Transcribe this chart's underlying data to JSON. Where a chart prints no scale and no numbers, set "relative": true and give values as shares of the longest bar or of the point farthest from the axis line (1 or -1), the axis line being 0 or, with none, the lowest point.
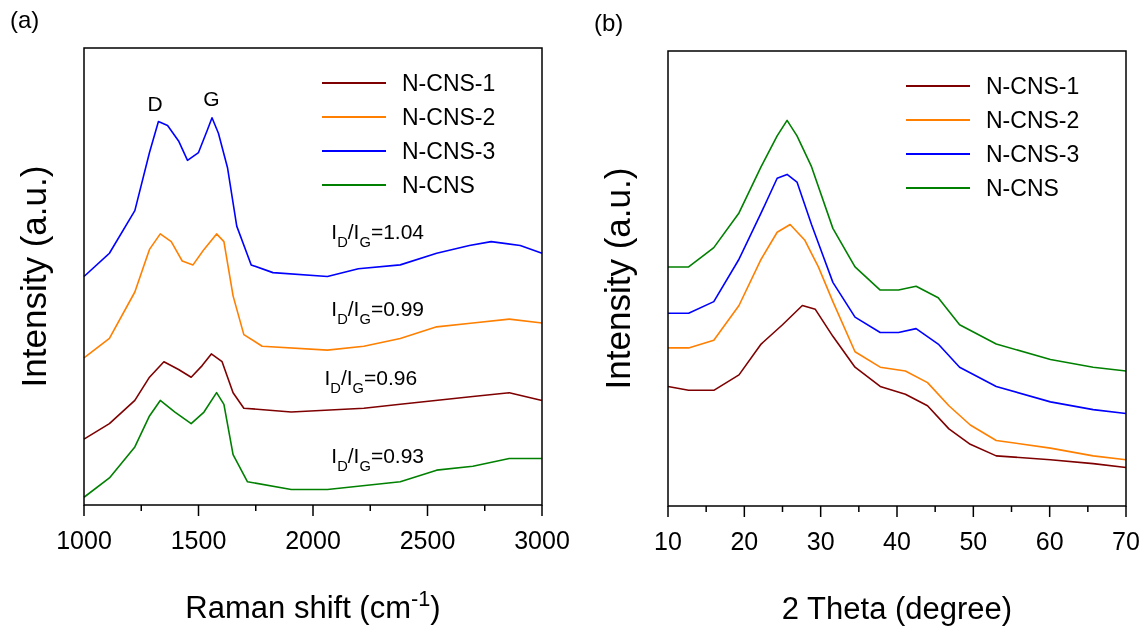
{
  "chart_data": [
    {
      "type": "line",
      "title": "(a)",
      "xlabel": "Raman shift (cm$^{-1}$)",
      "ylabel": "Intensity (a.u.)",
      "relative": true,
      "legend": "top right",
      "line_style": "solid",
      "tick_labels": "x",
      "xlim": [
        1000,
        3000
      ],
      "xticks": [
        1000,
        {
          "value": 1250,
          "label": null
        },
        1500,
        {
          "value": 1750,
          "label": null
        },
        2000,
        {
          "value": 2250,
          "label": null
        },
        2500,
        {
          "value": 2750,
          "label": null
        },
        3000
      ],
      "annotations": [
        "D",
        "G",
        "I$_{D}$/I$_{G}$=1.04",
        "I$_{D}$/I$_{G}$=0.99",
        "I$_{D}$/I$_{G}$=0.96",
        "I$_{D}$/I$_{G}$=0.93"
      ],
      "series": [
        {
          "name": "N-CNS-1",
          "color": "#7f0000",
          "x": [
            1000,
            1111,
            1222,
            1286,
            1349,
            1413,
            1468,
            1516,
            1556,
            1603,
            1651,
            1698,
            1905,
            2222,
            2381,
            2698,
            2857,
            3000
          ],
          "values": [
            0.17,
            0.21,
            0.27,
            0.33,
            0.37,
            0.35,
            0.33,
            0.36,
            0.39,
            0.37,
            0.29,
            0.25,
            0.24,
            0.25,
            0.26,
            0.28,
            0.29,
            0.27
          ]
        },
        {
          "name": "N-CNS-2",
          "color": "#ff7f00",
          "x": [
            1000,
            1111,
            1222,
            1286,
            1333,
            1381,
            1429,
            1476,
            1524,
            1579,
            1611,
            1651,
            1698,
            1778,
            2063,
            2222,
            2381,
            2540,
            2698,
            2857,
            3000
          ],
          "values": [
            0.38,
            0.43,
            0.55,
            0.66,
            0.7,
            0.68,
            0.63,
            0.62,
            0.66,
            0.7,
            0.68,
            0.54,
            0.44,
            0.41,
            0.4,
            0.41,
            0.43,
            0.46,
            0.47,
            0.48,
            0.47
          ]
        },
        {
          "name": "N-CNS-3",
          "color": "#0000ff",
          "x": [
            1000,
            1111,
            1222,
            1286,
            1325,
            1365,
            1413,
            1452,
            1500,
            1540,
            1559,
            1587,
            1627,
            1667,
            1730,
            1825,
            2063,
            2198,
            2381,
            2540,
            2683,
            2778,
            2905,
            3000
          ],
          "values": [
            0.59,
            0.65,
            0.76,
            0.91,
            0.99,
            0.98,
            0.94,
            0.89,
            0.91,
            0.97,
            1,
            0.96,
            0.87,
            0.72,
            0.62,
            0.6,
            0.59,
            0.61,
            0.62,
            0.65,
            0.67,
            0.68,
            0.67,
            0.65
          ]
        },
        {
          "name": "N-CNS",
          "color": "#008000",
          "x": [
            1000,
            1111,
            1222,
            1286,
            1333,
            1397,
            1468,
            1524,
            1579,
            1611,
            1651,
            1714,
            1905,
            2063,
            2381,
            2540,
            2698,
            2857,
            3000
          ],
          "values": [
            0.02,
            0.07,
            0.15,
            0.23,
            0.27,
            0.24,
            0.21,
            0.24,
            0.29,
            0.26,
            0.13,
            0.06,
            0.04,
            0.04,
            0.06,
            0.09,
            0.1,
            0.12,
            0.12
          ]
        }
      ]
    },
    {
      "type": "line",
      "title": "(b)",
      "xlabel": "2 Theta (degree)",
      "ylabel": "Intensity (a.u.)",
      "relative": true,
      "legend": "top right",
      "line_style": "solid",
      "tick_labels": "x",
      "xlim": [
        10,
        70
      ],
      "xticks": [
        10,
        {
          "value": 15,
          "label": null
        },
        20,
        {
          "value": 25,
          "label": null
        },
        30,
        {
          "value": 35,
          "label": null
        },
        40,
        {
          "value": 45,
          "label": null
        },
        50,
        {
          "value": 55,
          "label": null
        },
        60,
        {
          "value": 65,
          "label": null
        },
        70
      ],
      "series": [
        {
          "name": "N-CNS-1",
          "color": "#7f0000",
          "x": [
            10,
            12.7,
            16,
            19.3,
            22.2,
            25,
            27.6,
            29.3,
            31.6,
            34.5,
            37.8,
            41.1,
            44,
            46.8,
            49.6,
            53,
            60.1,
            65.7,
            70
          ],
          "values": [
            0.31,
            0.3,
            0.3,
            0.34,
            0.42,
            0.47,
            0.52,
            0.51,
            0.44,
            0.36,
            0.31,
            0.29,
            0.26,
            0.2,
            0.16,
            0.13,
            0.12,
            0.11,
            0.1
          ]
        },
        {
          "name": "N-CNS-2",
          "color": "#ff7f00",
          "x": [
            10,
            12.7,
            16,
            19.3,
            22.2,
            24.3,
            26,
            27.9,
            29.7,
            31.6,
            34.5,
            37.8,
            41.1,
            44,
            46.8,
            49.6,
            53,
            60.1,
            65.7,
            70
          ],
          "values": [
            0.41,
            0.41,
            0.43,
            0.52,
            0.64,
            0.71,
            0.73,
            0.69,
            0.62,
            0.53,
            0.4,
            0.36,
            0.35,
            0.32,
            0.26,
            0.21,
            0.17,
            0.15,
            0.13,
            0.12
          ]
        },
        {
          "name": "N-CNS-3",
          "color": "#0000ff",
          "x": [
            10,
            12.7,
            16,
            19.3,
            22.2,
            24.3,
            25.6,
            26.9,
            28.8,
            31.6,
            34.5,
            37.8,
            40.2,
            42.5,
            45.4,
            48.2,
            53,
            60.1,
            65.7,
            70
          ],
          "values": [
            0.5,
            0.5,
            0.53,
            0.64,
            0.76,
            0.85,
            0.86,
            0.84,
            0.73,
            0.58,
            0.49,
            0.45,
            0.45,
            0.46,
            0.42,
            0.36,
            0.31,
            0.27,
            0.25,
            0.24
          ]
        },
        {
          "name": "N-CNS",
          "color": "#008000",
          "x": [
            10,
            12.7,
            16,
            19.3,
            22.2,
            24.3,
            25.6,
            26.9,
            28.8,
            31.6,
            34.5,
            37.8,
            40.2,
            42.5,
            45.4,
            48.2,
            53,
            60.1,
            65.7,
            70
          ],
          "values": [
            0.62,
            0.62,
            0.67,
            0.76,
            0.88,
            0.96,
            1,
            0.96,
            0.88,
            0.72,
            0.62,
            0.56,
            0.56,
            0.57,
            0.54,
            0.47,
            0.42,
            0.38,
            0.36,
            0.35
          ]
        }
      ]
    }
  ]
}
